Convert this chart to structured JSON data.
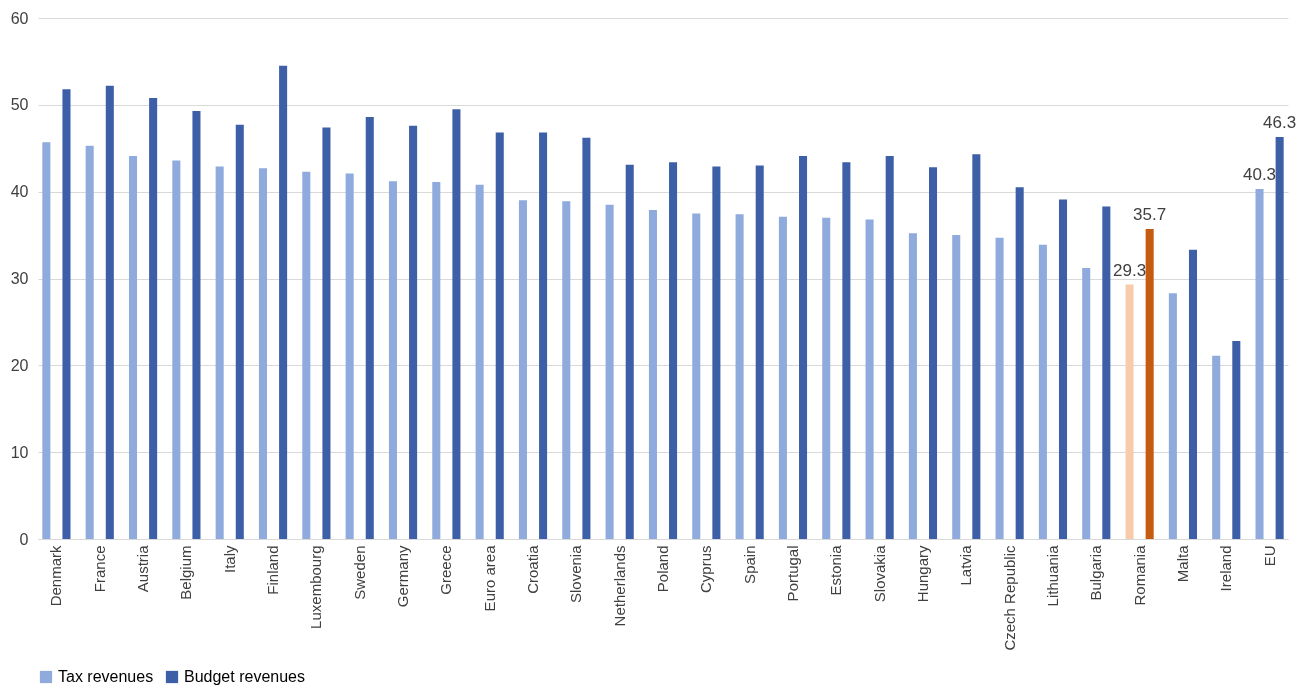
{
  "chart_data": {
    "type": "bar",
    "categories": [
      "Denmark",
      "France",
      "Austria",
      "Belgium",
      "Italy",
      "Finland",
      "Luxembourg",
      "Sweden",
      "Germany",
      "Greece",
      "Euro area",
      "Croatia",
      "Slovenia",
      "Netherlands",
      "Poland",
      "Cyprus",
      "Spain",
      "Portugal",
      "Estonia",
      "Slovakia",
      "Hungary",
      "Latvia",
      "Czech Republic",
      "Lithuania",
      "Bulgaria",
      "Romania",
      "Malta",
      "Ireland",
      null,
      "EU"
    ],
    "series": [
      {
        "name": "Tax revenues",
        "color": "#8faadc",
        "colors": [
          "#8faadc",
          "#8faadc",
          "#8faadc",
          "#8faadc",
          "#8faadc",
          "#8faadc",
          "#8faadc",
          "#8faadc",
          "#8faadc",
          "#8faadc",
          "#8faadc",
          "#8faadc",
          "#8faadc",
          "#8faadc",
          "#8faadc",
          "#8faadc",
          "#8faadc",
          "#8faadc",
          "#8faadc",
          "#8faadc",
          "#8faadc",
          "#8faadc",
          "#8faadc",
          "#8faadc",
          "#8faadc",
          "#f8cbad",
          "#8faadc",
          "#8faadc",
          "#8faadc",
          "#8faadc"
        ],
        "values": [
          45.7,
          45.3,
          44.1,
          43.6,
          42.9,
          42.7,
          42.3,
          42.1,
          41.2,
          41.1,
          40.8,
          39.0,
          38.9,
          38.5,
          37.9,
          37.5,
          37.4,
          37.1,
          37.0,
          36.8,
          35.2,
          35.0,
          34.7,
          33.9,
          31.2,
          29.3,
          28.3,
          21.1,
          null,
          40.3
        ],
        "value_labels": [
          null,
          null,
          null,
          null,
          null,
          null,
          null,
          null,
          null,
          null,
          null,
          null,
          null,
          null,
          null,
          null,
          null,
          null,
          null,
          null,
          null,
          null,
          null,
          null,
          null,
          "29.3",
          null,
          null,
          null,
          "40.3"
        ]
      },
      {
        "name": "Budget revenues",
        "color": "#3c5fa8",
        "colors": [
          "#3c5fa8",
          "#3c5fa8",
          "#3c5fa8",
          "#3c5fa8",
          "#3c5fa8",
          "#3c5fa8",
          "#3c5fa8",
          "#3c5fa8",
          "#3c5fa8",
          "#3c5fa8",
          "#3c5fa8",
          "#3c5fa8",
          "#3c5fa8",
          "#3c5fa8",
          "#3c5fa8",
          "#3c5fa8",
          "#3c5fa8",
          "#3c5fa8",
          "#3c5fa8",
          "#3c5fa8",
          "#3c5fa8",
          "#3c5fa8",
          "#3c5fa8",
          "#3c5fa8",
          "#3c5fa8",
          "#c55a11",
          "#3c5fa8",
          "#3c5fa8",
          "#3c5fa8",
          "#3c5fa8"
        ],
        "values": [
          51.8,
          52.2,
          50.8,
          49.3,
          47.7,
          54.5,
          47.4,
          48.6,
          47.6,
          49.5,
          46.8,
          46.8,
          46.2,
          43.1,
          43.4,
          42.9,
          43.0,
          44.1,
          43.4,
          44.1,
          42.8,
          44.3,
          40.5,
          39.1,
          38.3,
          35.7,
          33.3,
          22.8,
          null,
          46.3
        ],
        "value_labels": [
          null,
          null,
          null,
          null,
          null,
          null,
          null,
          null,
          null,
          null,
          null,
          null,
          null,
          null,
          null,
          null,
          null,
          null,
          null,
          null,
          null,
          null,
          null,
          null,
          null,
          "35.7",
          null,
          null,
          null,
          "46.3"
        ]
      }
    ],
    "ylim": [
      0,
      60
    ],
    "yticks": [
      0,
      10,
      20,
      30,
      40,
      50,
      60
    ],
    "grid": "y",
    "legend": "bottom"
  }
}
